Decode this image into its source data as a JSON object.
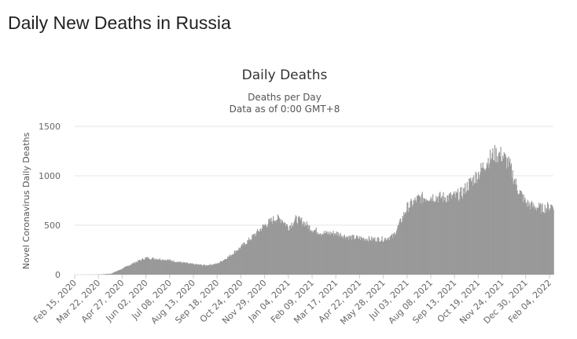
{
  "page": {
    "title": "Daily New Deaths in Russia"
  },
  "chart_data": {
    "type": "bar",
    "title": "Daily Deaths",
    "subtitle_lines": [
      "Deaths per Day",
      "Data as of 0:00 GMT+8"
    ],
    "ylabel": "Novel Coronavirus Daily Deaths",
    "xlabel": "",
    "ylim": [
      0,
      1500
    ],
    "yticks": [
      0,
      500,
      1000,
      1500
    ],
    "xlim": [
      "2020-02-15",
      "2022-02-10"
    ],
    "xtick_labels": [
      "Feb 15, 2020",
      "Mar 22, 2020",
      "Apr 27, 2020",
      "Jun 02, 2020",
      "Jul 08, 2020",
      "Aug 13, 2020",
      "Sep 18, 2020",
      "Oct 24, 2020",
      "Nov 29, 2020",
      "Jan 04, 2021",
      "Feb 09, 2021",
      "Mar 17, 2021",
      "Apr 22, 2021",
      "May 28, 2021",
      "Jul 03, 2021",
      "Aug 08, 2021",
      "Sep 13, 2021",
      "Oct 19, 2021",
      "Nov 24, 2021",
      "Dec 30, 2021",
      "Feb 04, 2022"
    ],
    "grid": true,
    "bar_color": "#999999",
    "series_trend": [
      {
        "date": "2020-02-15",
        "value": 0
      },
      {
        "date": "2020-03-22",
        "value": 1
      },
      {
        "date": "2020-04-10",
        "value": 10
      },
      {
        "date": "2020-04-27",
        "value": 60
      },
      {
        "date": "2020-05-15",
        "value": 120
      },
      {
        "date": "2020-06-02",
        "value": 170
      },
      {
        "date": "2020-06-20",
        "value": 160
      },
      {
        "date": "2020-07-08",
        "value": 145
      },
      {
        "date": "2020-07-25",
        "value": 125
      },
      {
        "date": "2020-08-13",
        "value": 105
      },
      {
        "date": "2020-09-01",
        "value": 95
      },
      {
        "date": "2020-09-18",
        "value": 110
      },
      {
        "date": "2020-10-05",
        "value": 180
      },
      {
        "date": "2020-10-24",
        "value": 280
      },
      {
        "date": "2020-11-10",
        "value": 380
      },
      {
        "date": "2020-11-29",
        "value": 500
      },
      {
        "date": "2020-12-15",
        "value": 570
      },
      {
        "date": "2020-12-25",
        "value": 560
      },
      {
        "date": "2021-01-04",
        "value": 480
      },
      {
        "date": "2021-01-15",
        "value": 560
      },
      {
        "date": "2021-01-25",
        "value": 540
      },
      {
        "date": "2021-02-09",
        "value": 460
      },
      {
        "date": "2021-02-25",
        "value": 420
      },
      {
        "date": "2021-03-17",
        "value": 420
      },
      {
        "date": "2021-04-05",
        "value": 380
      },
      {
        "date": "2021-04-22",
        "value": 370
      },
      {
        "date": "2021-05-10",
        "value": 360
      },
      {
        "date": "2021-05-28",
        "value": 360
      },
      {
        "date": "2021-06-12",
        "value": 390
      },
      {
        "date": "2021-06-22",
        "value": 520
      },
      {
        "date": "2021-07-03",
        "value": 680
      },
      {
        "date": "2021-07-20",
        "value": 770
      },
      {
        "date": "2021-08-08",
        "value": 790
      },
      {
        "date": "2021-08-25",
        "value": 780
      },
      {
        "date": "2021-09-13",
        "value": 790
      },
      {
        "date": "2021-09-25",
        "value": 830
      },
      {
        "date": "2021-10-05",
        "value": 920
      },
      {
        "date": "2021-10-19",
        "value": 1020
      },
      {
        "date": "2021-11-01",
        "value": 1150
      },
      {
        "date": "2021-11-12",
        "value": 1220
      },
      {
        "date": "2021-11-24",
        "value": 1210
      },
      {
        "date": "2021-12-05",
        "value": 1110
      },
      {
        "date": "2021-12-17",
        "value": 880
      },
      {
        "date": "2021-12-30",
        "value": 730
      },
      {
        "date": "2022-01-10",
        "value": 690
      },
      {
        "date": "2022-01-25",
        "value": 670
      },
      {
        "date": "2022-02-04",
        "value": 690
      },
      {
        "date": "2022-02-10",
        "value": 710
      }
    ]
  }
}
